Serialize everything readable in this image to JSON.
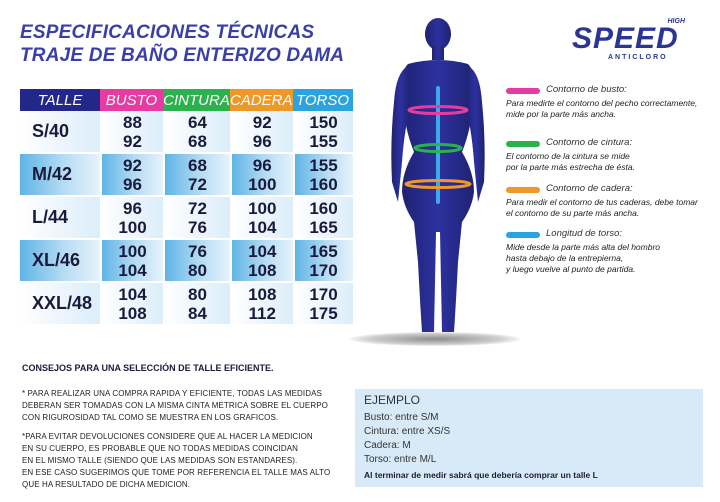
{
  "header": {
    "title_line1": "ESPECIFICACIONES TÉCNICAS",
    "title_line2": "TRAJE DE BAÑO ENTERIZO DAMA"
  },
  "logo": {
    "brand": "SPEED",
    "superscript": "HIGH",
    "tagline": "ANTICLORO"
  },
  "table": {
    "headers": [
      "TALLE",
      "BUSTO",
      "CINTURA",
      "CADERA",
      "TORSO"
    ],
    "rows": [
      {
        "talle": "S/40",
        "busto": [
          "88",
          "92"
        ],
        "cintura": [
          "64",
          "68"
        ],
        "cadera": [
          "92",
          "96"
        ],
        "torso": [
          "150",
          "155"
        ]
      },
      {
        "talle": "M/42",
        "busto": [
          "92",
          "96"
        ],
        "cintura": [
          "68",
          "72"
        ],
        "cadera": [
          "96",
          "100"
        ],
        "torso": [
          "155",
          "160"
        ]
      },
      {
        "talle": "L/44",
        "busto": [
          "96",
          "100"
        ],
        "cintura": [
          "72",
          "76"
        ],
        "cadera": [
          "100",
          "104"
        ],
        "torso": [
          "160",
          "165"
        ]
      },
      {
        "talle": "XL/46",
        "busto": [
          "100",
          "104"
        ],
        "cintura": [
          "76",
          "80"
        ],
        "cadera": [
          "104",
          "108"
        ],
        "torso": [
          "165",
          "170"
        ]
      },
      {
        "talle": "XXL/48",
        "busto": [
          "104",
          "108"
        ],
        "cintura": [
          "80",
          "84"
        ],
        "cadera": [
          "108",
          "112"
        ],
        "torso": [
          "170",
          "175"
        ]
      }
    ]
  },
  "legend": {
    "busto": {
      "title": "Contorno de busto:",
      "line1": "Para medirte el contorno del pecho correctamente,",
      "line2": "mide por la parte más ancha.",
      "line3": "",
      "color": "#e63ba1"
    },
    "cintura": {
      "title": "Contorno de cintura:",
      "line1": "El contorno de la cintura se mide",
      "line2": "por la parte más estrecha de ésta.",
      "line3": "",
      "color": "#2bb24c"
    },
    "cadera": {
      "title": "Contorno de cadera:",
      "line1": "Para medir el contorno de tus caderas, debe tomar",
      "line2": "el contorno de su parte más ancha.",
      "line3": "",
      "color": "#f0972a"
    },
    "torso": {
      "title": "Longitud de torso:",
      "line1": "Mide desde la parte más alta del hombro",
      "line2": "hasta debajo de la entrepierna,",
      "line3": "y luego vuelve al punto de partida.",
      "color": "#29a4de"
    }
  },
  "tips": {
    "title": "CONSEJOS PARA UNA SELECCIÓN DE TALLE EFICIENTE.",
    "p1": [
      "* PARA REALIZAR UNA COMPRA RAPIDA Y EFICIENTE, TODAS LAS MEDIDAS",
      "DEBERAN SER TOMADAS CON LA MISMA CINTA METRICA SOBRE EL CUERPO",
      "CON RIGUROSIDAD TAL COMO SE MUESTRA EN LOS GRAFICOS."
    ],
    "p2": [
      "*PARA EVITAR DEVOLUCIONES CONSIDERE QUE AL HACER LA MEDICION",
      "EN SU CUERPO, ES PROBABLE QUE NO TODAS MEDIDAS COINCIDAN",
      "EN EL MISMO TALLE  (SIENDO QUE LAS MEDIDAS SON ESTANDARES).",
      "EN ESE CASO SUGERIMOS QUE TOME POR REFERENCIA EL TALLE MAS ALTO",
      "QUE HA RESULTADO DE DICHA MEDICION."
    ]
  },
  "example": {
    "title": "EJEMPLO",
    "lines": [
      "Busto: entre S/M",
      "Cintura: entre XS/S",
      "Cadera: M",
      "Torso: entre M/L"
    ],
    "footer": "Al terminar de medir sabrá que debería comprar un talle L"
  },
  "colors": {
    "title": "#3a3fa8",
    "silhouette": "#25287f",
    "talle_header": "#23278a"
  }
}
